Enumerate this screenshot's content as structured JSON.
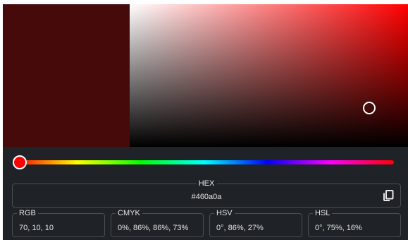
{
  "colors": {
    "selected": "#460a0a",
    "hue": "#ff0000",
    "panel_bg": "#1f2226",
    "border": "#4a4f56",
    "text": "#e6e6e6"
  },
  "hue_position": 0,
  "saturation": 0.86,
  "brightness": 0.27,
  "hex": {
    "label": "HEX",
    "value": "#460a0a"
  },
  "copy_icon": "copy-icon",
  "formats": [
    {
      "label": "RGB",
      "value": "70, 10, 10"
    },
    {
      "label": "CMYK",
      "value": "0%, 86%, 86%, 73%"
    },
    {
      "label": "HSV",
      "value": "0°, 86%, 27%"
    },
    {
      "label": "HSL",
      "value": "0°, 75%, 16%"
    }
  ]
}
